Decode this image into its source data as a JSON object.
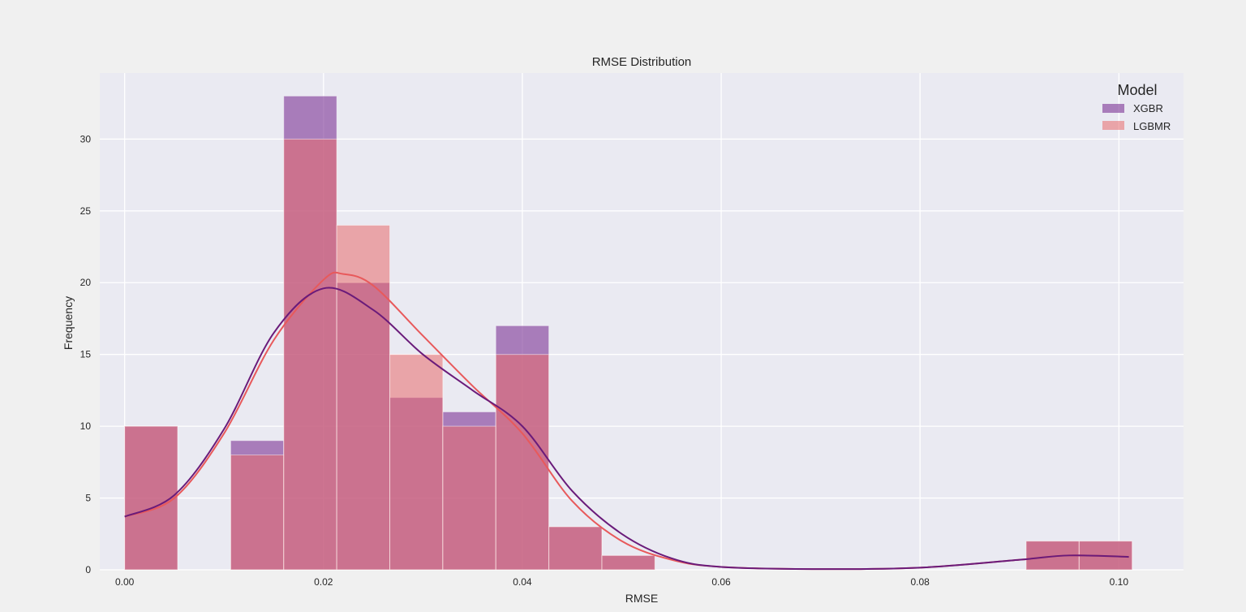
{
  "chart_data": {
    "type": "histogram",
    "title": "RMSE Distribution",
    "xlabel": "RMSE",
    "ylabel": "Frequency",
    "xlim": [
      -0.0025,
      0.1065
    ],
    "ylim": [
      0,
      34.6
    ],
    "xticks": [
      0.0,
      0.02,
      0.04,
      0.06,
      0.08,
      0.1
    ],
    "xtick_labels": [
      "0.00",
      "0.02",
      "0.04",
      "0.06",
      "0.08",
      "0.10"
    ],
    "yticks": [
      0,
      5,
      10,
      15,
      20,
      25,
      30
    ],
    "ytick_labels": [
      "0",
      "5",
      "10",
      "15",
      "20",
      "25",
      "30"
    ],
    "grid": true,
    "legend": {
      "title": "Model",
      "position": "top-right"
    },
    "bin_edges": [
      0.0,
      0.005333,
      0.010667,
      0.016,
      0.021333,
      0.026667,
      0.032,
      0.037333,
      0.042667,
      0.048,
      0.053333,
      0.058667,
      0.064,
      0.069333,
      0.074667,
      0.08,
      0.085333,
      0.090667,
      0.096,
      0.101333
    ],
    "series": [
      {
        "name": "XGBR",
        "color": "#7b3294",
        "counts": [
          10,
          0,
          9,
          33,
          20,
          12,
          11,
          17,
          3,
          1,
          0,
          0,
          0,
          0,
          0,
          0,
          0,
          2,
          2
        ],
        "kde_color": "#6a1b7a",
        "kde": [
          [
            0.0,
            3.7
          ],
          [
            0.005,
            5.2
          ],
          [
            0.01,
            9.8
          ],
          [
            0.015,
            16.5
          ],
          [
            0.02,
            19.6
          ],
          [
            0.025,
            18.1
          ],
          [
            0.03,
            15.0
          ],
          [
            0.035,
            12.5
          ],
          [
            0.04,
            10.0
          ],
          [
            0.045,
            5.5
          ],
          [
            0.05,
            2.5
          ],
          [
            0.055,
            0.8
          ],
          [
            0.06,
            0.2
          ],
          [
            0.07,
            0.05
          ],
          [
            0.08,
            0.15
          ],
          [
            0.09,
            0.7
          ],
          [
            0.095,
            1.0
          ],
          [
            0.101,
            0.9
          ]
        ]
      },
      {
        "name": "LGBMR",
        "color": "#e8696b",
        "counts": [
          10,
          0,
          8,
          30,
          24,
          15,
          10,
          15,
          3,
          1,
          0,
          0,
          0,
          0,
          0,
          0,
          0,
          2,
          2
        ],
        "kde_color": "#e8595b",
        "kde": [
          [
            0.0,
            3.7
          ],
          [
            0.005,
            5.0
          ],
          [
            0.01,
            9.5
          ],
          [
            0.015,
            16.0
          ],
          [
            0.02,
            20.2
          ],
          [
            0.022,
            20.6
          ],
          [
            0.025,
            19.8
          ],
          [
            0.03,
            16.3
          ],
          [
            0.035,
            12.8
          ],
          [
            0.04,
            9.5
          ],
          [
            0.045,
            4.8
          ],
          [
            0.05,
            2.0
          ],
          [
            0.055,
            0.7
          ],
          [
            0.06,
            0.2
          ],
          [
            0.07,
            0.05
          ],
          [
            0.08,
            0.15
          ],
          [
            0.09,
            0.7
          ],
          [
            0.095,
            1.0
          ],
          [
            0.101,
            0.9
          ]
        ]
      }
    ]
  }
}
